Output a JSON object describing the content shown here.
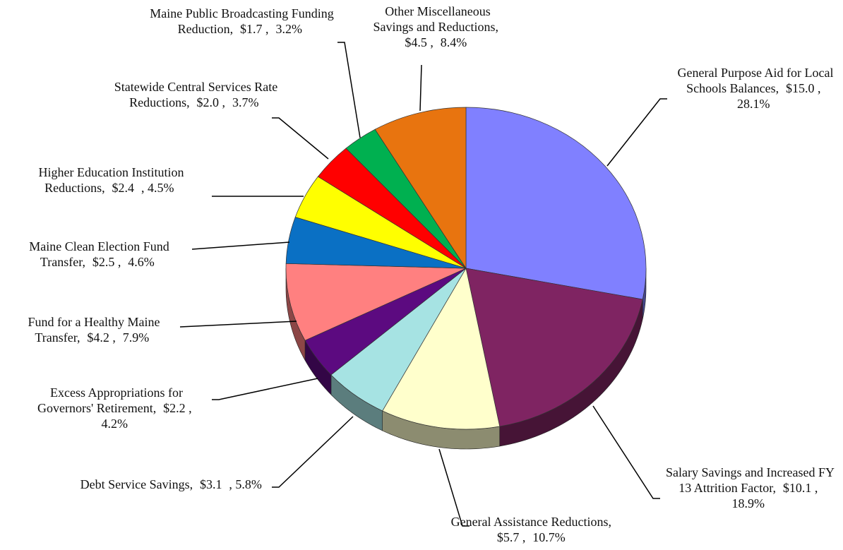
{
  "chart_data": {
    "type": "pie",
    "categories": [
      "General Purpose Aid for Local Schools Balances,",
      "Salary Savings and Increased FY 13 Attrition Factor,",
      "General Assistance Reductions,",
      "Debt Service Savings,",
      "Excess Appropriations for Governors' Retirement,",
      "Fund for a Healthy Maine Transfer,",
      "Maine Clean Election Fund Transfer,",
      "Higher Education Institution Reductions,",
      "Statewide Central Services Rate Reductions,",
      "Maine Public Broadcasting Funding Reduction,",
      "Other Miscellaneous Savings and Reductions,"
    ],
    "values": [
      15.0,
      10.1,
      5.7,
      3.1,
      2.2,
      4.2,
      2.5,
      2.4,
      2.0,
      1.7,
      4.5
    ],
    "value_labels": [
      "$15.0 ,",
      "$10.1 ,",
      "$5.7 ,",
      "$3.1",
      "$2.2 ,",
      "$4.2 ,",
      "$2.5 ,",
      "$2.4",
      "$2.0 ,",
      "$1.7 ,",
      "$4.5 ,"
    ],
    "percents": [
      28.1,
      18.9,
      10.7,
      5.8,
      4.2,
      7.9,
      4.6,
      4.5,
      3.7,
      3.2,
      8.4
    ],
    "percent_labels": [
      "28.1%",
      "18.9%",
      "10.7%",
      ", 5.8%",
      "4.2%",
      "7.9%",
      "4.6%",
      ", 4.5%",
      "3.7%",
      "3.2%",
      "8.4%"
    ],
    "colors": [
      "#8080ff",
      "#7f2462",
      "#ffffcc",
      "#a6e3e3",
      "#5c0a80",
      "#ff8080",
      "#0a70c4",
      "#ffff00",
      "#ff0000",
      "#00b050",
      "#e8740f"
    ]
  }
}
